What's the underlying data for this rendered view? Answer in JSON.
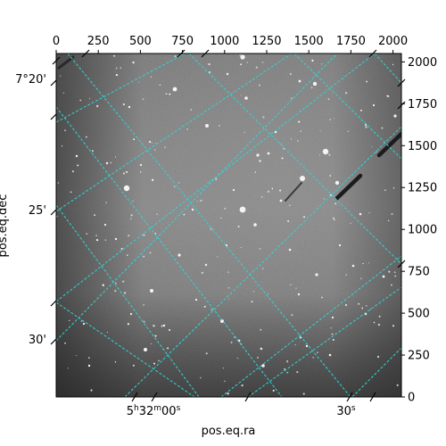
{
  "figure": {
    "xlabel": "pos.eq.ra",
    "ylabel": "pos.eq.dec",
    "pixel_x_ticks": [
      "0",
      "250",
      "500",
      "750",
      "1000",
      "1250",
      "1500",
      "1750",
      "2000"
    ],
    "pixel_y_ticks": [
      "0",
      "250",
      "500",
      "750",
      "1000",
      "1250",
      "1500",
      "1750",
      "2000"
    ],
    "ra_ticks": [
      {
        "h": "5",
        "m": "32",
        "s": "00"
      },
      {
        "h": "",
        "m": "",
        "s": "30"
      }
    ],
    "dec_ticks": [
      "7°20'",
      "25'",
      "30'"
    ],
    "grid_color": "#2fd6d6"
  },
  "chart_data": {
    "type": "heatmap",
    "title": "",
    "xlabel": "pos.eq.ra",
    "ylabel": "pos.eq.dec",
    "pixel_xlim": [
      0,
      2050
    ],
    "pixel_ylim": [
      0,
      2050
    ],
    "pixel_x_ticks": [
      0,
      250,
      500,
      750,
      1000,
      1250,
      1500,
      1750,
      2000
    ],
    "pixel_y_ticks": [
      0,
      250,
      500,
      750,
      1000,
      1250,
      1500,
      1750,
      2000
    ],
    "world_coordinate_grid": true,
    "colormap": "gray"
  }
}
